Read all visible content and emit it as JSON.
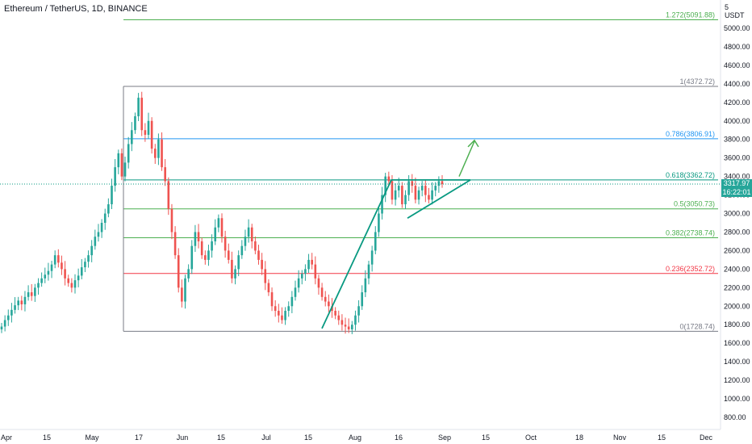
{
  "header": {
    "title": "Ethereum / TetherUS, 1D, BINANCE"
  },
  "price_label": {
    "price": "3317.97",
    "countdown": "16:22:01"
  },
  "currency": {
    "count": "5",
    "unit": "USDT"
  },
  "colors": {
    "up": "#26a69a",
    "down": "#ef5350",
    "line": "#089981",
    "fib_red": "#f23645",
    "fib_blue": "#2962ff",
    "fib_grey": "#787b86",
    "fib_green": "#4caf50"
  },
  "chart_data": {
    "type": "candlestick",
    "title": "Ethereum / TetherUS, 1D, BINANCE",
    "ylim": [
      700,
      5350
    ],
    "y_ticks": [
      "5000.00",
      "4800.00",
      "4600.00",
      "4400.00",
      "4200.00",
      "4000.00",
      "3800.00",
      "3600.00",
      "3400.00",
      "3200.00",
      "3000.00",
      "2800.00",
      "2600.00",
      "2400.00",
      "2200.00",
      "2000.00",
      "1800.00",
      "1600.00",
      "1400.00",
      "1200.00",
      "1000.00",
      "800.00"
    ],
    "x_ticks": [
      "Apr",
      "15",
      "May",
      "17",
      "Jun",
      "15",
      "Jul",
      "15",
      "Aug",
      "16",
      "Sep",
      "15",
      "Oct",
      "18",
      "Nov",
      "15",
      "Dec"
    ],
    "fib_levels": [
      {
        "label": "1.272(5091.88)",
        "value": 5091.88,
        "color": "#4caf50"
      },
      {
        "label": "1(4372.72)",
        "value": 4372.72,
        "color": "#787b86"
      },
      {
        "label": "0.786(3806.91)",
        "value": 3806.91,
        "color": "#2196f3"
      },
      {
        "label": "0.618(3362.72)",
        "value": 3362.72,
        "color": "#089981"
      },
      {
        "label": "0.5(3050.73)",
        "value": 3050.73,
        "color": "#4caf50"
      },
      {
        "label": "0.382(2738.74)",
        "value": 2738.74,
        "color": "#4caf50"
      },
      {
        "label": "0.236(2352.72)",
        "value": 2352.72,
        "color": "#f23645"
      },
      {
        "label": "0(1728.74)",
        "value": 1728.74,
        "color": "#787b86"
      }
    ],
    "candles_close": [
      1780,
      1850,
      1900,
      1960,
      2010,
      2060,
      2020,
      2100,
      2150,
      2110,
      2200,
      2250,
      2300,
      2340,
      2380,
      2450,
      2550,
      2470,
      2400,
      2300,
      2250,
      2200,
      2280,
      2330,
      2420,
      2480,
      2550,
      2650,
      2750,
      2800,
      2900,
      3000,
      3100,
      3300,
      3500,
      3650,
      3400,
      3550,
      3750,
      3900,
      4050,
      4250,
      3900,
      3850,
      4000,
      3700,
      3600,
      3800,
      3500,
      3350,
      3050,
      2800,
      2550,
      2200,
      2050,
      2300,
      2400,
      2650,
      2800,
      2700,
      2550,
      2500,
      2600,
      2700,
      2850,
      2950,
      2750,
      2600,
      2500,
      2300,
      2400,
      2550,
      2650,
      2750,
      2850,
      2700,
      2600,
      2500,
      2400,
      2250,
      2150,
      2000,
      1950,
      1900,
      1850,
      1950,
      2000,
      2100,
      2200,
      2300,
      2350,
      2400,
      2500,
      2450,
      2300,
      2200,
      2100,
      2050,
      2000,
      1950,
      1900,
      1850,
      1800,
      1780,
      1750,
      1800,
      1900,
      2000,
      2150,
      2300,
      2450,
      2600,
      2800,
      3000,
      3200,
      3400,
      3350,
      3150,
      3250,
      3300,
      3100,
      3200,
      3350,
      3300,
      3150,
      3250,
      3300,
      3200,
      3150,
      3250,
      3300,
      3350,
      3318
    ],
    "triangle": {
      "apex": 3362.72,
      "support_start": 2950,
      "target_arrow": 3800
    }
  }
}
